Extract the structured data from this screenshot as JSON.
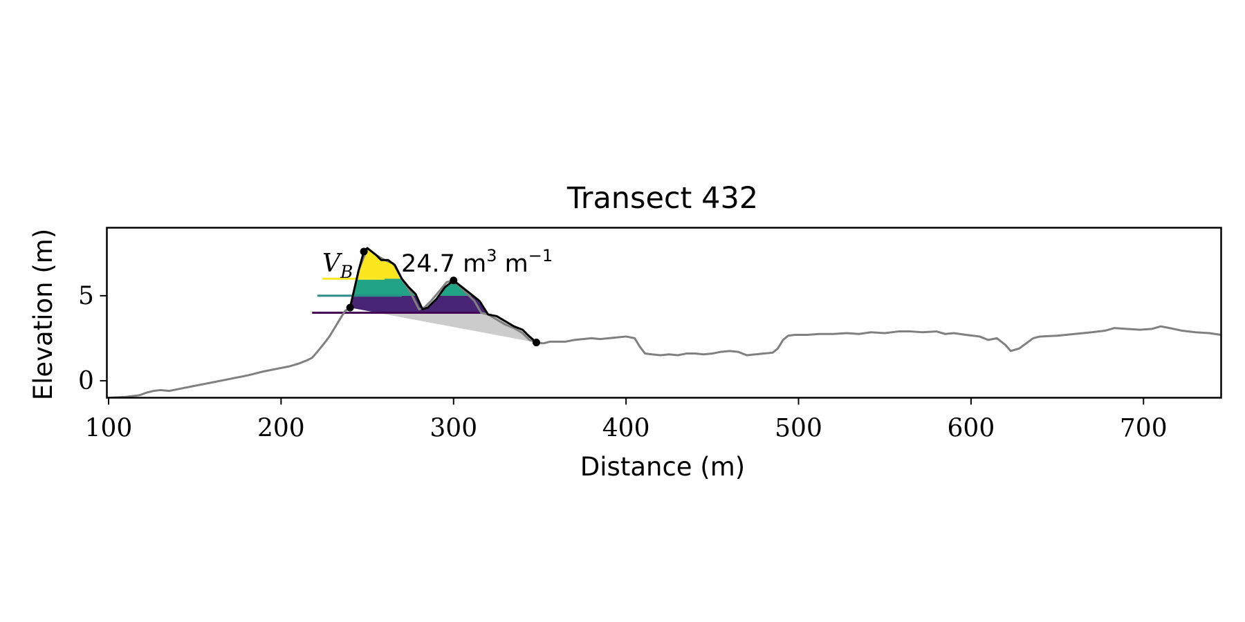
{
  "chart_data": {
    "type": "line",
    "title": "Transect 432",
    "xlabel": "Distance (m)",
    "ylabel": "Elevation (m)",
    "xlim": [
      99,
      745
    ],
    "ylim": [
      -1,
      9
    ],
    "xticks": [
      100,
      200,
      300,
      400,
      500,
      600,
      700
    ],
    "yticks": [
      0,
      5
    ],
    "grid": false,
    "annotation": {
      "symbol": "V",
      "subscript": "B",
      "value_text": "24.7",
      "unit_text": "m",
      "unit_sup": "3",
      "unit_suffix": "m",
      "unit_suffix_sup": "−1"
    },
    "profile": {
      "color": "#808080",
      "x": [
        100,
        110,
        118,
        122,
        126,
        130,
        135,
        140,
        150,
        160,
        170,
        180,
        190,
        200,
        205,
        210,
        215,
        218,
        221,
        225,
        228,
        231,
        234,
        237,
        240,
        245,
        250,
        255,
        260,
        265,
        270,
        275,
        280,
        283,
        287,
        292,
        296,
        300,
        304,
        308,
        312,
        316,
        320,
        325,
        330,
        335,
        340,
        344,
        348,
        352,
        356,
        360,
        365,
        370,
        375,
        380,
        385,
        390,
        395,
        400,
        405,
        408,
        411,
        415,
        420,
        425,
        430,
        435,
        440,
        445,
        450,
        455,
        460,
        465,
        470,
        475,
        480,
        485,
        488,
        491,
        494,
        498,
        505,
        512,
        520,
        528,
        535,
        542,
        550,
        558,
        565,
        572,
        580,
        585,
        590,
        597,
        605,
        610,
        615,
        620,
        623,
        628,
        632,
        636,
        640,
        650,
        660,
        670,
        678,
        683,
        690,
        698,
        705,
        710,
        715,
        722,
        730,
        738,
        745
      ],
      "y": [
        -1.0,
        -0.95,
        -0.85,
        -0.7,
        -0.6,
        -0.55,
        -0.6,
        -0.5,
        -0.3,
        -0.1,
        0.1,
        0.3,
        0.55,
        0.75,
        0.85,
        1.0,
        1.2,
        1.35,
        1.7,
        2.2,
        2.6,
        3.1,
        3.6,
        4.1,
        4.3,
        6.5,
        7.8,
        7.4,
        7.1,
        6.9,
        6.0,
        5.2,
        4.2,
        4.3,
        4.7,
        5.3,
        5.8,
        5.9,
        5.5,
        5.1,
        4.7,
        4.0,
        3.9,
        3.6,
        3.3,
        3.1,
        2.8,
        2.4,
        2.25,
        2.2,
        2.3,
        2.3,
        2.3,
        2.4,
        2.45,
        2.5,
        2.45,
        2.5,
        2.55,
        2.6,
        2.5,
        2.0,
        1.6,
        1.55,
        1.5,
        1.55,
        1.5,
        1.6,
        1.6,
        1.55,
        1.6,
        1.7,
        1.75,
        1.7,
        1.5,
        1.55,
        1.6,
        1.65,
        1.9,
        2.4,
        2.65,
        2.7,
        2.7,
        2.75,
        2.75,
        2.8,
        2.75,
        2.85,
        2.8,
        2.9,
        2.9,
        2.85,
        2.9,
        2.75,
        2.8,
        2.7,
        2.6,
        2.4,
        2.5,
        2.1,
        1.75,
        1.9,
        2.2,
        2.5,
        2.6,
        2.65,
        2.75,
        2.85,
        2.95,
        3.1,
        3.05,
        3.0,
        3.05,
        3.2,
        3.1,
        2.95,
        2.85,
        2.8,
        2.7
      ]
    },
    "dune": {
      "outline_color": "#000000",
      "x": [
        240,
        245,
        248,
        250,
        255,
        258,
        262,
        266,
        270,
        274,
        278,
        282,
        285,
        290,
        295,
        300,
        305,
        310,
        315,
        320,
        325,
        330,
        335,
        340,
        344,
        348
      ],
      "y": [
        4.3,
        6.5,
        7.6,
        7.8,
        7.4,
        7.1,
        7.1,
        6.8,
        6.0,
        5.5,
        5.1,
        4.2,
        4.3,
        4.8,
        5.5,
        5.9,
        5.5,
        5.1,
        4.7,
        3.9,
        3.8,
        3.5,
        3.2,
        3.0,
        2.6,
        2.25
      ],
      "points": [
        {
          "x": 240,
          "y": 4.3
        },
        {
          "x": 248,
          "y": 7.6
        },
        {
          "x": 300,
          "y": 5.9
        },
        {
          "x": 348,
          "y": 2.25
        }
      ]
    },
    "base_line": {
      "from": {
        "x": 240,
        "y": 4.3
      },
      "to": {
        "x": 348,
        "y": 2.25
      },
      "fill_color": "#cccccc"
    },
    "bands": [
      {
        "lower": 4.0,
        "upper": 5.0,
        "color": "#472574",
        "line_color": "#440154",
        "line_x": [
          218,
          316
        ]
      },
      {
        "lower": 5.0,
        "upper": 6.0,
        "color": "#21a386",
        "line_color": "#2a8d8a",
        "line_x": [
          221,
          270
        ]
      },
      {
        "lower": 6.0,
        "upper": 8.0,
        "color": "#fbe620",
        "line_color": "#fde725",
        "line_x": [
          224,
          260
        ]
      }
    ]
  }
}
